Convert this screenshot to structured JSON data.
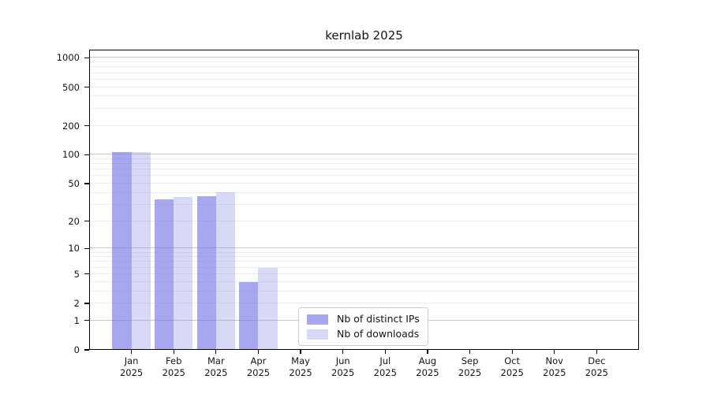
{
  "chart_data": {
    "type": "bar",
    "title": "kernlab 2025",
    "year": "2025",
    "categories": [
      "Jan",
      "Feb",
      "Mar",
      "Apr",
      "May",
      "Jun",
      "Jul",
      "Aug",
      "Sep",
      "Oct",
      "Nov",
      "Dec"
    ],
    "series": [
      {
        "name": "Nb of distinct IPs",
        "color": "rgba(120,120,232,0.65)",
        "values": [
          107,
          34,
          37,
          4,
          0,
          0,
          0,
          0,
          0,
          0,
          0,
          0
        ]
      },
      {
        "name": "Nb of downloads",
        "color": "rgba(125,125,228,0.30)",
        "values": [
          107,
          36,
          41,
          6,
          0,
          0,
          0,
          0,
          0,
          0,
          0,
          0
        ]
      }
    ],
    "xlabel": "",
    "ylabel": "",
    "yscale": "log1p",
    "ylim": [
      0,
      1001
    ],
    "yticks": [
      0,
      1,
      2,
      5,
      10,
      20,
      50,
      100,
      200,
      500,
      1000
    ],
    "grid": true,
    "grid_major_color": "#c8c8c8",
    "grid_minor_color": "#ededed",
    "legend_position": "bottom-center",
    "axis_color": "#000000",
    "text_color": "#141414"
  }
}
